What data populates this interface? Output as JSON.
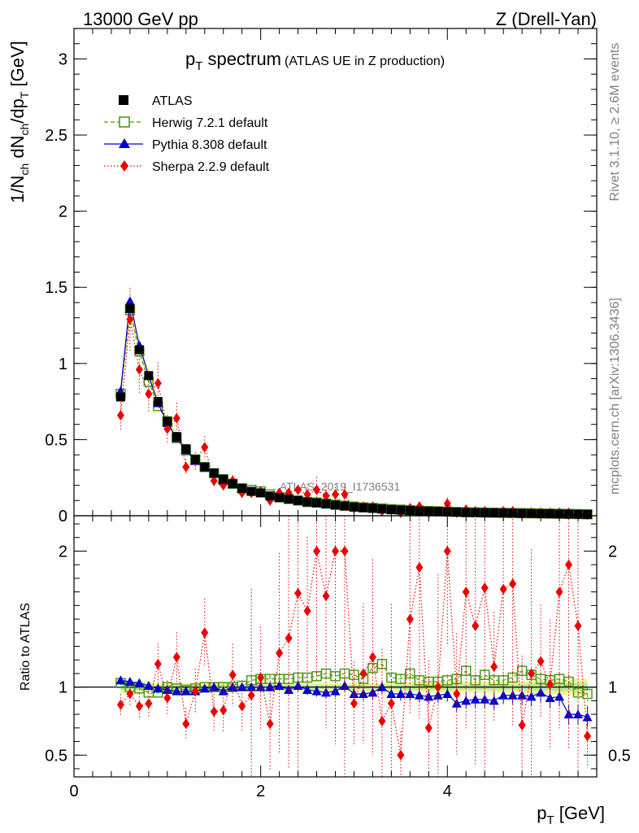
{
  "header": {
    "left": "13000 GeV pp",
    "right": "Z (Drell-Yan)"
  },
  "side_labels": {
    "rivet": "Rivet 3.1.10, ≥ 2.6M events",
    "mcplots": "mcplots.cern.ch [arXiv:1306.3436]"
  },
  "watermark": "ATLAS_2019_I1736531",
  "colors": {
    "atlas": "#000000",
    "herwig": "#4d9a1a",
    "pythia": "#0000cc",
    "sherpa": "#ee0000",
    "band_yellow": "#f3f39a",
    "band_green": "#b9e89a"
  },
  "chart_data": [
    {
      "type": "scatter",
      "title_main": "p",
      "title_sub": "T",
      "title_rest": " spectrum",
      "title_paren": "(ATLAS UE in Z production)",
      "ylabel_parts": [
        "1/N",
        "ch",
        " dN",
        "ch",
        "/dp",
        "T",
        " [GeV]"
      ],
      "xlim": [
        0,
        5.6
      ],
      "ylim": [
        0,
        3.2
      ],
      "yticks": [
        0,
        0.5,
        1,
        1.5,
        2,
        2.5,
        3
      ],
      "ytick_labels": [
        "0",
        "0.5",
        "1",
        "1.5",
        "2",
        "2.5",
        "3"
      ],
      "legend_position": "top-left",
      "x": [
        0.5,
        0.6,
        0.7,
        0.8,
        0.9,
        1.0,
        1.1,
        1.2,
        1.3,
        1.4,
        1.5,
        1.6,
        1.7,
        1.8,
        1.9,
        2.0,
        2.1,
        2.2,
        2.3,
        2.4,
        2.5,
        2.6,
        2.7,
        2.8,
        2.9,
        3.0,
        3.1,
        3.2,
        3.3,
        3.4,
        3.5,
        3.6,
        3.7,
        3.8,
        3.9,
        4.0,
        4.1,
        4.2,
        4.3,
        4.4,
        4.5,
        4.6,
        4.7,
        4.8,
        4.9,
        5.0,
        5.1,
        5.2,
        5.3,
        5.4,
        5.5
      ],
      "series": [
        {
          "name": "ATLAS",
          "marker": "square-filled",
          "line": "none",
          "values": [
            0.78,
            1.36,
            1.09,
            0.92,
            0.75,
            0.62,
            0.52,
            0.44,
            0.37,
            0.32,
            0.28,
            0.24,
            0.21,
            0.18,
            0.16,
            0.15,
            0.13,
            0.12,
            0.11,
            0.1,
            0.09,
            0.085,
            0.078,
            0.07,
            0.064,
            0.058,
            0.053,
            0.049,
            0.045,
            0.041,
            0.038,
            0.035,
            0.032,
            0.03,
            0.028,
            0.026,
            0.024,
            0.022,
            0.021,
            0.02,
            0.019,
            0.018,
            0.017,
            0.016,
            0.015,
            0.014,
            0.013,
            0.012,
            0.011,
            0.01,
            0.009
          ]
        },
        {
          "name": "Herwig 7.2.1 default",
          "marker": "square-open",
          "line": "dashed",
          "values": [
            0.8,
            1.35,
            1.08,
            0.88,
            0.72,
            0.62,
            0.51,
            0.43,
            0.37,
            0.32,
            0.28,
            0.24,
            0.21,
            0.18,
            0.17,
            0.16,
            0.14,
            0.12,
            0.11,
            0.1,
            0.09,
            0.087,
            0.08,
            0.073,
            0.066,
            0.06,
            0.055,
            0.052,
            0.048,
            0.043,
            0.04,
            0.036,
            0.033,
            0.031,
            0.029,
            0.027,
            0.025,
            0.023,
            0.022,
            0.021,
            0.02,
            0.019,
            0.018,
            0.017,
            0.016,
            0.015,
            0.014,
            0.013,
            0.012,
            0.011,
            0.01
          ]
        },
        {
          "name": "Pythia 8.308 default",
          "marker": "triangle-filled",
          "line": "solid",
          "values": [
            0.82,
            1.41,
            1.12,
            0.92,
            0.74,
            0.61,
            0.51,
            0.43,
            0.36,
            0.32,
            0.28,
            0.23,
            0.21,
            0.18,
            0.16,
            0.15,
            0.13,
            0.12,
            0.11,
            0.1,
            0.09,
            0.082,
            0.075,
            0.068,
            0.064,
            0.055,
            0.05,
            0.047,
            0.045,
            0.039,
            0.036,
            0.033,
            0.03,
            0.028,
            0.026,
            0.025,
            0.023,
            0.02,
            0.019,
            0.018,
            0.017,
            0.017,
            0.016,
            0.015,
            0.014,
            0.014,
            0.012,
            0.011,
            0.009,
            0.008,
            0.007
          ]
        },
        {
          "name": "Sherpa 2.2.9 default",
          "marker": "diamond-filled",
          "line": "dotted",
          "values": [
            0.66,
            1.29,
            0.96,
            0.8,
            0.87,
            0.57,
            0.64,
            0.32,
            0.36,
            0.45,
            0.23,
            0.2,
            0.23,
            0.15,
            0.15,
            0.16,
            0.1,
            0.15,
            0.15,
            0.17,
            0.14,
            0.17,
            0.13,
            0.14,
            0.14,
            0.05,
            0.06,
            0.06,
            0.03,
            0.04,
            0.02,
            0.05,
            0.06,
            0.02,
            0.03,
            0.08,
            0.02,
            0.04,
            0.03,
            0.03,
            0.02,
            0.03,
            0.03,
            0.01,
            0.02,
            0.02,
            0.02,
            0.02,
            0.02,
            0.01,
            0.006
          ]
        }
      ]
    },
    {
      "type": "scatter",
      "ylabel": "Ratio to ATLAS",
      "xlabel_main": "p",
      "xlabel_sub": "T",
      "xlabel_rest": " [GeV]",
      "xlim": [
        0,
        5.6
      ],
      "ylim": [
        0.34,
        2.26
      ],
      "xticks": [
        0,
        2,
        4
      ],
      "xtick_labels": [
        "0",
        "2",
        "4"
      ],
      "yticks": [
        0.5,
        1,
        2
      ],
      "ytick_labels": [
        "0.5",
        "1",
        "2"
      ],
      "reference_line": 1,
      "band_half_width": [
        0.05,
        0.04,
        0.04,
        0.04,
        0.03,
        0.03,
        0.03,
        0.03,
        0.03,
        0.03,
        0.03,
        0.03,
        0.03,
        0.03,
        0.03,
        0.03,
        0.03,
        0.03,
        0.03,
        0.03,
        0.03,
        0.03,
        0.03,
        0.03,
        0.03,
        0.03,
        0.03,
        0.03,
        0.03,
        0.03,
        0.03,
        0.04,
        0.04,
        0.04,
        0.04,
        0.04,
        0.04,
        0.04,
        0.04,
        0.04,
        0.04,
        0.04,
        0.04,
        0.04,
        0.05,
        0.05,
        0.05,
        0.06,
        0.06,
        0.06,
        0.06
      ],
      "series": [
        {
          "name": "Herwig 7.2.1 default",
          "marker": "square-open",
          "line": "dashed",
          "values": [
            1.03,
            1.0,
            0.99,
            0.96,
            0.96,
            1.0,
            0.99,
            0.98,
            0.99,
            1.0,
            1.0,
            1.0,
            1.0,
            1.01,
            1.05,
            1.06,
            1.06,
            1.06,
            1.06,
            1.07,
            1.07,
            1.08,
            1.1,
            1.08,
            1.1,
            1.09,
            1.06,
            1.14,
            1.17,
            1.07,
            1.06,
            1.1,
            1.05,
            1.04,
            1.04,
            1.05,
            1.06,
            1.12,
            1.05,
            1.09,
            1.05,
            1.05,
            1.07,
            1.12,
            1.09,
            1.06,
            1.05,
            1.06,
            1.04,
            0.96,
            0.95
          ]
        },
        {
          "name": "Pythia 8.308 default",
          "marker": "triangle-filled",
          "line": "solid",
          "values": [
            1.05,
            1.04,
            1.03,
            1.01,
            0.99,
            0.98,
            0.97,
            0.97,
            0.97,
            0.99,
            1.0,
            0.97,
            1.0,
            1.0,
            1.0,
            1.0,
            1.0,
            1.01,
            0.98,
            1.01,
            0.98,
            0.97,
            0.96,
            0.97,
            1.01,
            0.95,
            0.95,
            0.96,
            1.0,
            0.95,
            0.95,
            0.95,
            0.94,
            0.93,
            0.94,
            0.95,
            0.88,
            0.9,
            0.91,
            0.91,
            0.9,
            0.94,
            0.94,
            0.94,
            0.93,
            0.96,
            0.92,
            0.93,
            0.8,
            0.8,
            0.78
          ]
        },
        {
          "name": "Sherpa 2.2.9 default",
          "marker": "diamond-filled",
          "line": "dotted",
          "values": [
            0.87,
            0.95,
            0.86,
            0.88,
            1.17,
            0.92,
            1.22,
            0.73,
            0.97,
            1.4,
            0.82,
            0.83,
            1.09,
            0.86,
            0.94,
            1.07,
            0.73,
            1.25,
            1.36,
            1.69,
            1.56,
            2.0,
            1.67,
            2.0,
            2.0,
            0.88,
            1.1,
            1.22,
            0.75,
            0.88,
            0.5,
            1.5,
            1.88,
            0.7,
            1.0,
            2.0,
            0.95,
            1.7,
            1.45,
            1.73,
            1.15,
            1.72,
            1.76,
            0.72,
            1.1,
            1.19,
            1.02,
            1.7,
            1.9,
            1.45,
            0.64
          ]
        }
      ]
    }
  ]
}
